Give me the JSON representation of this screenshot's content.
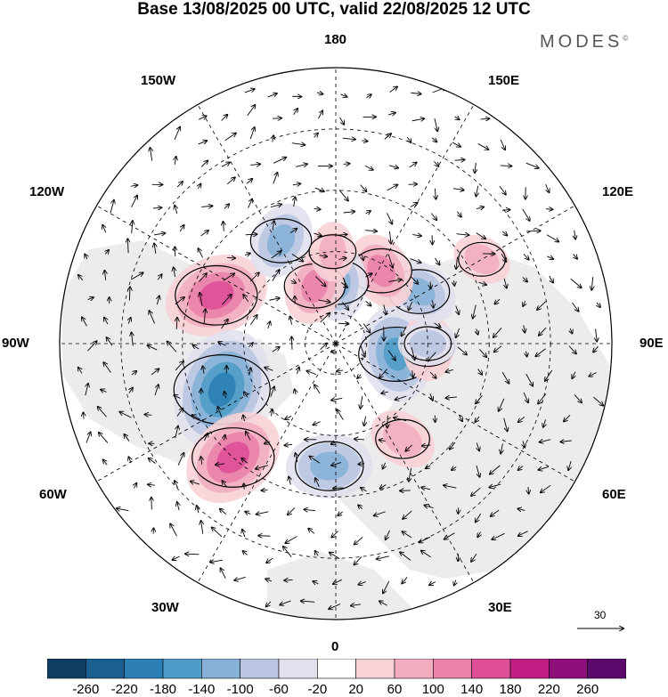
{
  "title": "Base 13/08/2025 00 UTC, valid 22/08/2025 12 UTC",
  "brand": "MODES",
  "brand_mark": "©",
  "longitude_labels": {
    "n180": "180",
    "e150": "150E",
    "e120": "120E",
    "e90": "90E",
    "e60": "60E",
    "e30": "30E",
    "s0": "0",
    "w30": "30W",
    "w60": "60W",
    "w90": "90W",
    "w120": "120W",
    "w150": "150W"
  },
  "vector_scale_label": "30",
  "colorbar": {
    "ticks": [
      "-260",
      "-220",
      "-180",
      "-140",
      "-100",
      "-60",
      "-20",
      "20",
      "60",
      "100",
      "140",
      "180",
      "220",
      "260"
    ],
    "colors": [
      "#0e3f63",
      "#1a5f8f",
      "#2c7fb4",
      "#4f9cc8",
      "#86b0d6",
      "#b9c5e1",
      "#e1e1ee",
      "#ffffff",
      "#f7d2d6",
      "#f2aec0",
      "#ea82ab",
      "#df4f98",
      "#c21d83",
      "#8f0f7a",
      "#5a0869"
    ]
  },
  "colors": {
    "land": "#ececec",
    "contour": "#000000",
    "grid": "#000000"
  },
  "anomaly_features": [
    {
      "kind": "positive",
      "value": 160,
      "lat": 48,
      "lon": -112
    },
    {
      "kind": "negative",
      "value": -200,
      "lat": 50,
      "lon": -68
    },
    {
      "kind": "positive",
      "value": 160,
      "lat": 40,
      "lon": -42
    },
    {
      "kind": "negative",
      "value": -120,
      "lat": 50,
      "lon": -3
    },
    {
      "kind": "positive",
      "value": 80,
      "lat": 52,
      "lon": 35
    },
    {
      "kind": "negative",
      "value": -140,
      "lat": 70,
      "lon": 80
    },
    {
      "kind": "positive",
      "value": 80,
      "lat": 60,
      "lon": 88
    },
    {
      "kind": "negative",
      "value": -100,
      "lat": 58,
      "lon": 122
    },
    {
      "kind": "positive",
      "value": 100,
      "lat": 62,
      "lon": 148
    },
    {
      "kind": "negative",
      "value": -100,
      "lat": 70,
      "lon": 178
    },
    {
      "kind": "positive",
      "value": 100,
      "lat": 70,
      "lon": -160
    },
    {
      "kind": "negative",
      "value": -100,
      "lat": 52,
      "lon": -152
    },
    {
      "kind": "positive",
      "value": 60,
      "lat": 60,
      "lon": -178
    },
    {
      "kind": "negative",
      "value": -60,
      "lat": 60,
      "lon": 90
    },
    {
      "kind": "positive",
      "value": 60,
      "lat": 35,
      "lon": 120
    }
  ]
}
